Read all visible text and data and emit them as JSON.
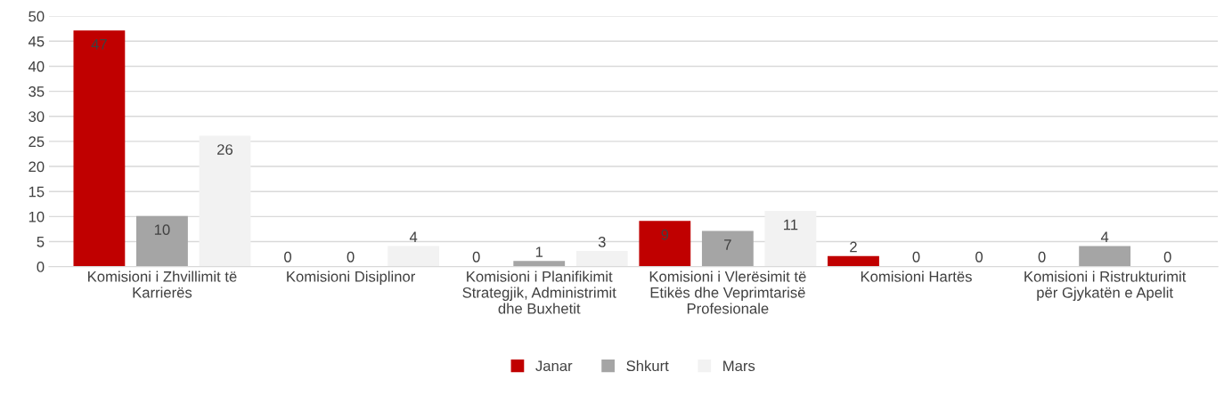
{
  "chart_data": {
    "type": "bar",
    "categories": [
      "Komisioni i Zhvillimit të\nKarrierës",
      "Komisioni Disiplinor",
      "Komisioni i Planifikimit\nStrategjik, Administrimit\ndhe Buxhetit",
      "Komisioni i Vlerësimit të\nEtikës dhe Veprimtarisë\nProfesionale",
      "Komisioni Hartës",
      "Komisioni i Ristrukturimit\npër Gjykatën e Apelit"
    ],
    "series": [
      {
        "name": "Janar",
        "color": "#c00000",
        "values": [
          47,
          0,
          0,
          9,
          2,
          0
        ]
      },
      {
        "name": "Shkurt",
        "color": "#a5a5a5",
        "values": [
          10,
          0,
          1,
          7,
          0,
          4
        ]
      },
      {
        "name": "Mars",
        "color": "#f2f2f2",
        "values": [
          26,
          4,
          3,
          11,
          0,
          0
        ]
      }
    ],
    "ylim": [
      0,
      50
    ],
    "yticks": [
      0,
      5,
      10,
      15,
      20,
      25,
      30,
      35,
      40,
      45,
      50
    ],
    "grid": "y",
    "legend": "bottom",
    "data_labels": true
  }
}
